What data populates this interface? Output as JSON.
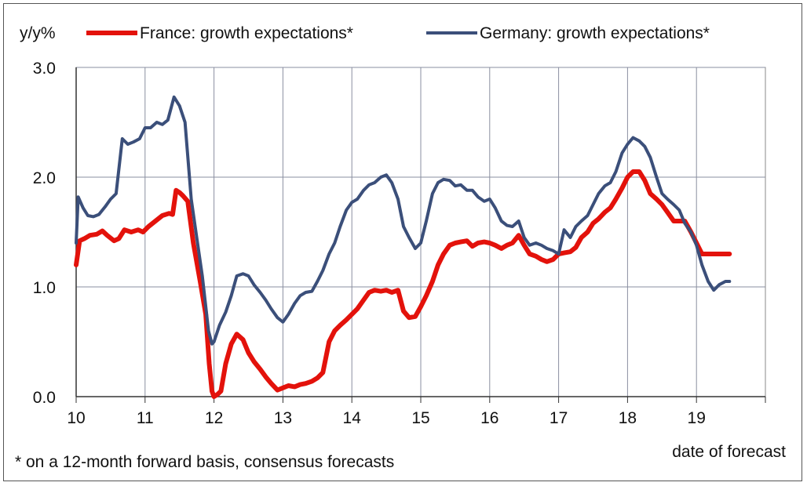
{
  "chart_data": {
    "type": "line",
    "ylabel": "y/y%",
    "xlabel": "date of forecast",
    "footnote": "* on a 12-month forward basis, consensus forecasts",
    "ylim": [
      0,
      3
    ],
    "xlim": [
      10,
      20
    ],
    "y_ticks": [
      "0.0",
      "1.0",
      "2.0",
      "3.0"
    ],
    "x_ticks": [
      "10",
      "11",
      "12",
      "13",
      "14",
      "15",
      "16",
      "17",
      "18",
      "19"
    ],
    "grid": true,
    "legend_position": "top",
    "series": [
      {
        "name": "France: growth expectations*",
        "color": "#e3120b",
        "points": [
          [
            10.0,
            1.2
          ],
          [
            10.05,
            1.42
          ],
          [
            10.12,
            1.44
          ],
          [
            10.2,
            1.47
          ],
          [
            10.3,
            1.48
          ],
          [
            10.38,
            1.51
          ],
          [
            10.45,
            1.47
          ],
          [
            10.55,
            1.42
          ],
          [
            10.62,
            1.44
          ],
          [
            10.7,
            1.52
          ],
          [
            10.8,
            1.5
          ],
          [
            10.9,
            1.52
          ],
          [
            10.97,
            1.5
          ],
          [
            11.05,
            1.55
          ],
          [
            11.15,
            1.6
          ],
          [
            11.25,
            1.65
          ],
          [
            11.35,
            1.67
          ],
          [
            11.4,
            1.66
          ],
          [
            11.45,
            1.88
          ],
          [
            11.5,
            1.86
          ],
          [
            11.55,
            1.83
          ],
          [
            11.62,
            1.78
          ],
          [
            11.7,
            1.4
          ],
          [
            11.8,
            1.05
          ],
          [
            11.88,
            0.75
          ],
          [
            11.93,
            0.3
          ],
          [
            11.97,
            0.05
          ],
          [
            12.0,
            0.0
          ],
          [
            12.05,
            0.02
          ],
          [
            12.1,
            0.05
          ],
          [
            12.17,
            0.3
          ],
          [
            12.25,
            0.48
          ],
          [
            12.33,
            0.57
          ],
          [
            12.42,
            0.52
          ],
          [
            12.5,
            0.4
          ],
          [
            12.58,
            0.32
          ],
          [
            12.67,
            0.25
          ],
          [
            12.75,
            0.18
          ],
          [
            12.83,
            0.12
          ],
          [
            12.92,
            0.06
          ],
          [
            13.0,
            0.08
          ],
          [
            13.08,
            0.1
          ],
          [
            13.17,
            0.09
          ],
          [
            13.25,
            0.11
          ],
          [
            13.33,
            0.12
          ],
          [
            13.42,
            0.14
          ],
          [
            13.5,
            0.17
          ],
          [
            13.58,
            0.22
          ],
          [
            13.67,
            0.5
          ],
          [
            13.75,
            0.6
          ],
          [
            13.83,
            0.65
          ],
          [
            13.92,
            0.7
          ],
          [
            14.0,
            0.75
          ],
          [
            14.08,
            0.8
          ],
          [
            14.17,
            0.88
          ],
          [
            14.25,
            0.95
          ],
          [
            14.33,
            0.97
          ],
          [
            14.42,
            0.96
          ],
          [
            14.5,
            0.97
          ],
          [
            14.58,
            0.95
          ],
          [
            14.67,
            0.97
          ],
          [
            14.75,
            0.78
          ],
          [
            14.83,
            0.72
          ],
          [
            14.92,
            0.73
          ],
          [
            15.0,
            0.82
          ],
          [
            15.08,
            0.92
          ],
          [
            15.17,
            1.05
          ],
          [
            15.25,
            1.2
          ],
          [
            15.33,
            1.3
          ],
          [
            15.42,
            1.38
          ],
          [
            15.5,
            1.4
          ],
          [
            15.58,
            1.41
          ],
          [
            15.67,
            1.42
          ],
          [
            15.75,
            1.37
          ],
          [
            15.83,
            1.4
          ],
          [
            15.92,
            1.41
          ],
          [
            16.0,
            1.4
          ],
          [
            16.08,
            1.38
          ],
          [
            16.17,
            1.35
          ],
          [
            16.25,
            1.38
          ],
          [
            16.33,
            1.4
          ],
          [
            16.42,
            1.47
          ],
          [
            16.5,
            1.38
          ],
          [
            16.58,
            1.3
          ],
          [
            16.67,
            1.28
          ],
          [
            16.75,
            1.25
          ],
          [
            16.83,
            1.23
          ],
          [
            16.92,
            1.25
          ],
          [
            17.0,
            1.3
          ],
          [
            17.08,
            1.31
          ],
          [
            17.17,
            1.32
          ],
          [
            17.25,
            1.36
          ],
          [
            17.33,
            1.45
          ],
          [
            17.42,
            1.5
          ],
          [
            17.5,
            1.58
          ],
          [
            17.58,
            1.62
          ],
          [
            17.67,
            1.68
          ],
          [
            17.75,
            1.72
          ],
          [
            17.83,
            1.8
          ],
          [
            17.92,
            1.9
          ],
          [
            18.0,
            2.0
          ],
          [
            18.08,
            2.05
          ],
          [
            18.17,
            2.05
          ],
          [
            18.25,
            1.97
          ],
          [
            18.33,
            1.85
          ],
          [
            18.42,
            1.8
          ],
          [
            18.5,
            1.75
          ],
          [
            18.58,
            1.68
          ],
          [
            18.67,
            1.6
          ],
          [
            18.75,
            1.6
          ],
          [
            18.83,
            1.6
          ],
          [
            18.92,
            1.5
          ],
          [
            19.0,
            1.4
          ],
          [
            19.08,
            1.3
          ],
          [
            19.17,
            1.3
          ],
          [
            19.25,
            1.3
          ],
          [
            19.33,
            1.3
          ],
          [
            19.42,
            1.3
          ],
          [
            19.48,
            1.3
          ]
        ]
      },
      {
        "name": "Germany: growth expectations*",
        "color": "#3b4f7a",
        "points": [
          [
            10.0,
            1.4
          ],
          [
            10.03,
            1.82
          ],
          [
            10.1,
            1.72
          ],
          [
            10.17,
            1.65
          ],
          [
            10.25,
            1.64
          ],
          [
            10.33,
            1.66
          ],
          [
            10.42,
            1.73
          ],
          [
            10.5,
            1.8
          ],
          [
            10.58,
            1.85
          ],
          [
            10.67,
            2.35
          ],
          [
            10.75,
            2.3
          ],
          [
            10.83,
            2.32
          ],
          [
            10.92,
            2.35
          ],
          [
            11.0,
            2.45
          ],
          [
            11.08,
            2.45
          ],
          [
            11.17,
            2.5
          ],
          [
            11.25,
            2.48
          ],
          [
            11.33,
            2.52
          ],
          [
            11.42,
            2.73
          ],
          [
            11.5,
            2.65
          ],
          [
            11.58,
            2.5
          ],
          [
            11.67,
            1.8
          ],
          [
            11.75,
            1.45
          ],
          [
            11.83,
            1.1
          ],
          [
            11.92,
            0.6
          ],
          [
            11.97,
            0.48
          ],
          [
            12.0,
            0.5
          ],
          [
            12.08,
            0.65
          ],
          [
            12.17,
            0.77
          ],
          [
            12.25,
            0.92
          ],
          [
            12.33,
            1.1
          ],
          [
            12.42,
            1.12
          ],
          [
            12.5,
            1.1
          ],
          [
            12.58,
            1.02
          ],
          [
            12.67,
            0.95
          ],
          [
            12.75,
            0.88
          ],
          [
            12.83,
            0.8
          ],
          [
            12.92,
            0.72
          ],
          [
            13.0,
            0.68
          ],
          [
            13.08,
            0.75
          ],
          [
            13.17,
            0.85
          ],
          [
            13.25,
            0.92
          ],
          [
            13.33,
            0.95
          ],
          [
            13.42,
            0.96
          ],
          [
            13.5,
            1.05
          ],
          [
            13.58,
            1.15
          ],
          [
            13.67,
            1.3
          ],
          [
            13.75,
            1.4
          ],
          [
            13.83,
            1.55
          ],
          [
            13.92,
            1.7
          ],
          [
            14.0,
            1.77
          ],
          [
            14.08,
            1.8
          ],
          [
            14.17,
            1.88
          ],
          [
            14.25,
            1.93
          ],
          [
            14.33,
            1.95
          ],
          [
            14.42,
            2.0
          ],
          [
            14.5,
            2.02
          ],
          [
            14.58,
            1.95
          ],
          [
            14.67,
            1.8
          ],
          [
            14.75,
            1.55
          ],
          [
            14.83,
            1.45
          ],
          [
            14.92,
            1.35
          ],
          [
            15.0,
            1.4
          ],
          [
            15.08,
            1.6
          ],
          [
            15.17,
            1.85
          ],
          [
            15.25,
            1.95
          ],
          [
            15.33,
            1.98
          ],
          [
            15.42,
            1.97
          ],
          [
            15.5,
            1.92
          ],
          [
            15.58,
            1.93
          ],
          [
            15.67,
            1.88
          ],
          [
            15.75,
            1.88
          ],
          [
            15.83,
            1.82
          ],
          [
            15.92,
            1.78
          ],
          [
            16.0,
            1.8
          ],
          [
            16.08,
            1.72
          ],
          [
            16.17,
            1.6
          ],
          [
            16.25,
            1.56
          ],
          [
            16.33,
            1.55
          ],
          [
            16.42,
            1.6
          ],
          [
            16.5,
            1.45
          ],
          [
            16.58,
            1.38
          ],
          [
            16.67,
            1.4
          ],
          [
            16.75,
            1.38
          ],
          [
            16.83,
            1.35
          ],
          [
            16.92,
            1.33
          ],
          [
            17.0,
            1.3
          ],
          [
            17.08,
            1.52
          ],
          [
            17.17,
            1.45
          ],
          [
            17.25,
            1.55
          ],
          [
            17.33,
            1.6
          ],
          [
            17.42,
            1.65
          ],
          [
            17.5,
            1.75
          ],
          [
            17.58,
            1.85
          ],
          [
            17.67,
            1.92
          ],
          [
            17.75,
            1.95
          ],
          [
            17.83,
            2.05
          ],
          [
            17.92,
            2.22
          ],
          [
            18.0,
            2.3
          ],
          [
            18.08,
            2.36
          ],
          [
            18.17,
            2.33
          ],
          [
            18.25,
            2.28
          ],
          [
            18.33,
            2.18
          ],
          [
            18.42,
            2.0
          ],
          [
            18.5,
            1.85
          ],
          [
            18.58,
            1.8
          ],
          [
            18.67,
            1.75
          ],
          [
            18.75,
            1.7
          ],
          [
            18.83,
            1.58
          ],
          [
            18.92,
            1.5
          ],
          [
            19.0,
            1.38
          ],
          [
            19.08,
            1.2
          ],
          [
            19.17,
            1.05
          ],
          [
            19.25,
            0.97
          ],
          [
            19.33,
            1.02
          ],
          [
            19.42,
            1.05
          ],
          [
            19.48,
            1.05
          ]
        ]
      }
    ]
  }
}
